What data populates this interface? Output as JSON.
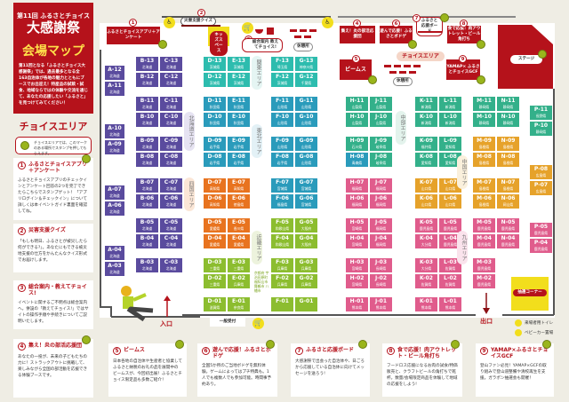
{
  "header": {
    "edition": "第11回 ふるさとチョイス",
    "title": "大感謝祭",
    "subtitle": "会場マップ",
    "description": "第11回となる「ふるさとチョイス大感謝祭」では、過去最多となる全163自治体が各地の魅力とともにブースでお出迎え！特産品の試飲・試食、地域ならではの体験や交流を通じて、あなたの応援したい「ふるさと」を見つけてみてください！"
  },
  "choice_area": {
    "heading": "チョイスエリア",
    "info": "チョイスエリアでは、このマークのある場所でスタンプを押してもらえます。"
  },
  "panels": [
    {
      "num": "1",
      "title": "ふるさとチョイスアプリ＋アンケート",
      "body": "ふるさとチョイスアプリのチェックインとアンケート回答の2つを完了できたらこちらでスタンプゲット！「アプリログイン＆チェックイン」について詳しくは本イベントガイド裏面を確認してね。"
    },
    {
      "num": "2",
      "title": "災害支援クイズ",
      "body": "「もしも明日、ふるさとが被災したら何ができる?」。あなたにもできる被災地支援の仕方をかんたんなクイズ形式でお届けします。"
    },
    {
      "num": "3",
      "title": "総合案内・教えてチョイス!",
      "body": "イベントに関するご不明点は総合案内へ。併設の「教えてチョイス!」ではサイトの操作手順や手続きについてご説明いたします。"
    },
    {
      "num": "4",
      "title": "集え！炎の部活応援団",
      "body": "あなたの一投が、未来の子どもたちの力に！ストラックアウトに挑戦して、楽しみながら全国の部活動を応援できる体験ブースです。"
    },
    {
      "num": "5",
      "title": "ビームス",
      "body": "日本各地の自治体や生産者と協業してふるさと納税のお礼の品を展開中のビームスが、今回初出展！ふるさとチョイス限定品も多数ご紹介！"
    },
    {
      "num": "6",
      "title": "遊んで応援！ふるさとボドゲ",
      "body": "全国5か所のご当地ボドゲを無料体験。ゲームによってはプチ特典も。1人でも複数人でも参加可能。時間事予約あり。"
    },
    {
      "num": "7",
      "title": "ふるさと応援ボード",
      "body": "大感謝祭で出会った自治体や、日ごろから応援している自治体に向けてメッセージを送ろう!"
    },
    {
      "num": "8",
      "title": "食で応援！肉アウトレット・ビール角打ち",
      "body": "フードロス応援になるお肉の試食/特価販売と、クラフトビールの角打ちで乾杯。数量/会場限定商品を体験して地域の応援をしよう!"
    },
    {
      "num": "9",
      "title": "YAMAP×ふるさとチョイスGCF",
      "body": "登山ファン必見！YAMAP×GCFの取り組みで登山道整備や清校再生を支援。ガラポン抽選会も開催！"
    }
  ],
  "map": {
    "features": {
      "app": "ふるさとチョイスアプリ＋アンケート",
      "quiz": "災害支援クイズ",
      "kids": "キッズスペース",
      "info": "総合案内 教えてチョイス!",
      "rest": "休憩所",
      "bukatsu": "集え！炎の部活応援団",
      "bodoge": "遊んで応援！ふるさとボドゲ",
      "board": "ふるさと応援ボード",
      "food": "食で応援！肉アウトレット・ビール角打ち",
      "choice_area": "チョイスエリア",
      "beams": "ビームス",
      "yamap": "YAMAP× ふるさとチョイスGCF",
      "stage": "ステージ",
      "lottery": "抽選コーナー",
      "reception": "一般受付",
      "entrance": "入口",
      "exit": "出口",
      "extra_list": "京都府 宇治田原町 福知山市 舞鶴市 八幡市"
    },
    "areas": {
      "hokkaido": "北海道エリア",
      "kanto": "関東エリア",
      "tohoku": "東北エリア",
      "shikoku": "四国エリア",
      "kinki": "近畿エリア",
      "chubu": "中部エリア",
      "chugoku": "中国エリア",
      "kyushu": "九州エリア"
    },
    "legend": {
      "toilet": "来場者用トイレ",
      "stroller": "ベビーカー置場"
    },
    "colors": {
      "hokkaido": "#5a4b9e",
      "kanto": "#2dbcae",
      "tohoku": "#2a9bbb",
      "shikoku": "#e8731f",
      "kinki": "#8cbd2f",
      "chubu": "#33b08a",
      "chugoku": "#e6a22a",
      "kyushu": "#e05c8c",
      "brand": "#b5121b"
    },
    "booths": [
      {
        "code": "A-12",
        "pref": "北海道",
        "g": "hokkaido"
      },
      {
        "code": "A-11",
        "pref": "北海道",
        "g": "hokkaido"
      },
      {
        "code": "A-10",
        "pref": "北海道",
        "g": "hokkaido"
      },
      {
        "code": "A-09",
        "pref": "北海道",
        "g": "hokkaido"
      },
      {
        "code": "A-07",
        "pref": "北海道",
        "g": "hokkaido"
      },
      {
        "code": "A-06",
        "pref": "北海道",
        "g": "hokkaido"
      },
      {
        "code": "A-04",
        "pref": "北海道",
        "g": "hokkaido"
      },
      {
        "code": "A-03",
        "pref": "北海道",
        "g": "hokkaido"
      },
      {
        "code": "B-13",
        "pref": "北海道",
        "g": "hokkaido"
      },
      {
        "code": "C-13",
        "pref": "北海道",
        "g": "hokkaido"
      },
      {
        "code": "B-12",
        "pref": "北海道",
        "g": "hokkaido"
      },
      {
        "code": "C-12",
        "pref": "北海道",
        "g": "hokkaido"
      },
      {
        "code": "B-11",
        "pref": "北海道",
        "g": "hokkaido"
      },
      {
        "code": "C-11",
        "pref": "北海道",
        "g": "hokkaido"
      },
      {
        "code": "B-10",
        "pref": "北海道",
        "g": "hokkaido"
      },
      {
        "code": "C-10",
        "pref": "北海道",
        "g": "hokkaido"
      },
      {
        "code": "B-09",
        "pref": "北海道",
        "g": "hokkaido"
      },
      {
        "code": "C-09",
        "pref": "北海道",
        "g": "hokkaido"
      },
      {
        "code": "B-08",
        "pref": "北海道",
        "g": "hokkaido"
      },
      {
        "code": "C-08",
        "pref": "北海道",
        "g": "hokkaido"
      },
      {
        "code": "B-07",
        "pref": "北海道",
        "g": "hokkaido"
      },
      {
        "code": "C-07",
        "pref": "北海道",
        "g": "hokkaido"
      },
      {
        "code": "B-06",
        "pref": "北海道",
        "g": "hokkaido"
      },
      {
        "code": "C-06",
        "pref": "北海道",
        "g": "hokkaido"
      },
      {
        "code": "B-05",
        "pref": "北海道",
        "g": "hokkaido"
      },
      {
        "code": "C-05",
        "pref": "北海道",
        "g": "hokkaido"
      },
      {
        "code": "B-04",
        "pref": "北海道",
        "g": "hokkaido"
      },
      {
        "code": "C-04",
        "pref": "北海道",
        "g": "hokkaido"
      },
      {
        "code": "B-03",
        "pref": "北海道",
        "g": "hokkaido"
      },
      {
        "code": "C-03",
        "pref": "北海道",
        "g": "hokkaido"
      },
      {
        "code": "D-13",
        "pref": "茨城県",
        "g": "kanto"
      },
      {
        "code": "E-13",
        "pref": "茨城県",
        "g": "kanto"
      },
      {
        "code": "D-12",
        "pref": "茨城県",
        "g": "kanto"
      },
      {
        "code": "E-12",
        "pref": "茨城県",
        "g": "kanto"
      },
      {
        "code": "D-11",
        "pref": "秋田県",
        "g": "tohoku"
      },
      {
        "code": "E-11",
        "pref": "秋田県",
        "g": "tohoku"
      },
      {
        "code": "D-10",
        "pref": "秋田県",
        "g": "tohoku"
      },
      {
        "code": "E-10",
        "pref": "秋田県",
        "g": "tohoku"
      },
      {
        "code": "D-09",
        "pref": "岩手県",
        "g": "tohoku"
      },
      {
        "code": "E-09",
        "pref": "岩手県",
        "g": "tohoku"
      },
      {
        "code": "D-08",
        "pref": "岩手県",
        "g": "tohoku"
      },
      {
        "code": "E-08",
        "pref": "岩手県",
        "g": "tohoku"
      },
      {
        "code": "D-07",
        "pref": "高知県",
        "g": "shikoku"
      },
      {
        "code": "E-07",
        "pref": "高知県",
        "g": "shikoku"
      },
      {
        "code": "D-06",
        "pref": "高知県",
        "g": "shikoku"
      },
      {
        "code": "E-06",
        "pref": "徳島県",
        "g": "shikoku"
      },
      {
        "code": "D-05",
        "pref": "愛媛県",
        "g": "shikoku"
      },
      {
        "code": "E-05",
        "pref": "香川県",
        "g": "shikoku"
      },
      {
        "code": "D-04",
        "pref": "愛媛県",
        "g": "shikoku"
      },
      {
        "code": "E-04",
        "pref": "愛媛県",
        "g": "shikoku"
      },
      {
        "code": "D-03",
        "pref": "三重県",
        "g": "kinki"
      },
      {
        "code": "E-03",
        "pref": "三重県",
        "g": "kinki"
      },
      {
        "code": "D-02",
        "pref": "三重県",
        "g": "kinki"
      },
      {
        "code": "E-02",
        "pref": "兵庫県",
        "g": "kinki"
      },
      {
        "code": "D-01",
        "pref": "滋賀県",
        "g": "kinki"
      },
      {
        "code": "E-01",
        "pref": "奈良県",
        "g": "kinki"
      },
      {
        "code": "F-13",
        "pref": "埼玉県",
        "g": "kanto"
      },
      {
        "code": "G-13",
        "pref": "神奈川県",
        "g": "kanto"
      },
      {
        "code": "F-12",
        "pref": "茨城県",
        "g": "kanto"
      },
      {
        "code": "G-12",
        "pref": "千葉県",
        "g": "kanto"
      },
      {
        "code": "F-11",
        "pref": "山形県",
        "g": "tohoku"
      },
      {
        "code": "G-11",
        "pref": "山形県",
        "g": "tohoku"
      },
      {
        "code": "F-10",
        "pref": "山形県",
        "g": "tohoku"
      },
      {
        "code": "G-10",
        "pref": "山形県",
        "g": "tohoku"
      },
      {
        "code": "F-09",
        "pref": "山形県",
        "g": "tohoku"
      },
      {
        "code": "G-09",
        "pref": "山形県",
        "g": "tohoku"
      },
      {
        "code": "F-08",
        "pref": "岩手県",
        "g": "tohoku"
      },
      {
        "code": "G-08",
        "pref": "山形県",
        "g": "tohoku"
      },
      {
        "code": "F-07",
        "pref": "宮城県",
        "g": "tohoku"
      },
      {
        "code": "G-07",
        "pref": "宮城県",
        "g": "tohoku"
      },
      {
        "code": "F-06",
        "pref": "福島県",
        "g": "tohoku"
      },
      {
        "code": "G-06",
        "pref": "宮城県",
        "g": "tohoku"
      },
      {
        "code": "F-05",
        "pref": "和歌山県",
        "g": "kinki"
      },
      {
        "code": "G-05",
        "pref": "大阪府",
        "g": "kinki"
      },
      {
        "code": "F-04",
        "pref": "和歌山県",
        "g": "kinki"
      },
      {
        "code": "G-04",
        "pref": "大阪府",
        "g": "kinki"
      },
      {
        "code": "F-03",
        "pref": "兵庫県",
        "g": "kinki"
      },
      {
        "code": "G-03",
        "pref": "兵庫県",
        "g": "kinki"
      },
      {
        "code": "F-02",
        "pref": "兵庫県",
        "g": "kinki"
      },
      {
        "code": "G-02",
        "pref": "兵庫県",
        "g": "kinki"
      },
      {
        "code": "F-01",
        "pref": "",
        "g": "kinki"
      },
      {
        "code": "G-01",
        "pref": "",
        "g": "kinki"
      },
      {
        "code": "H-11",
        "pref": "山梨県",
        "g": "chubu"
      },
      {
        "code": "J-11",
        "pref": "山梨県",
        "g": "chubu"
      },
      {
        "code": "H-10",
        "pref": "山梨県",
        "g": "chubu"
      },
      {
        "code": "J-10",
        "pref": "山梨県",
        "g": "chubu"
      },
      {
        "code": "H-09",
        "pref": "石川県",
        "g": "chubu"
      },
      {
        "code": "J-09",
        "pref": "岐阜県",
        "g": "chubu"
      },
      {
        "code": "H-08",
        "pref": "青森県",
        "g": "tohoku"
      },
      {
        "code": "J-08",
        "pref": "岐阜県",
        "g": "chubu"
      },
      {
        "code": "H-07",
        "pref": "福岡県",
        "g": "kyushu"
      },
      {
        "code": "J-07",
        "pref": "福岡県",
        "g": "kyushu"
      },
      {
        "code": "H-06",
        "pref": "福岡県",
        "g": "kyushu"
      },
      {
        "code": "J-06",
        "pref": "福岡県",
        "g": "kyushu"
      },
      {
        "code": "H-05",
        "pref": "宮崎県",
        "g": "kyushu"
      },
      {
        "code": "J-05",
        "pref": "福岡県",
        "g": "kyushu"
      },
      {
        "code": "H-04",
        "pref": "宮崎県",
        "g": "kyushu"
      },
      {
        "code": "J-04",
        "pref": "福岡県",
        "g": "kyushu"
      },
      {
        "code": "H-03",
        "pref": "宮崎県",
        "g": "kyushu"
      },
      {
        "code": "J-03",
        "pref": "長崎県",
        "g": "kyushu"
      },
      {
        "code": "H-02",
        "pref": "宮崎県",
        "g": "kyushu"
      },
      {
        "code": "J-02",
        "pref": "長崎県",
        "g": "kyushu"
      },
      {
        "code": "H-01",
        "pref": "熊本県",
        "g": "kyushu"
      },
      {
        "code": "J-01",
        "pref": "熊本県",
        "g": "kyushu"
      },
      {
        "code": "K-11",
        "pref": "新潟県",
        "g": "chubu"
      },
      {
        "code": "L-11",
        "pref": "新潟県",
        "g": "chubu"
      },
      {
        "code": "K-10",
        "pref": "新潟県",
        "g": "chubu"
      },
      {
        "code": "L-10",
        "pref": "新潟県",
        "g": "chubu"
      },
      {
        "code": "K-09",
        "pref": "福井県",
        "g": "chubu"
      },
      {
        "code": "L-09",
        "pref": "愛知県",
        "g": "chubu"
      },
      {
        "code": "K-08",
        "pref": "愛知県",
        "g": "chubu"
      },
      {
        "code": "L-08",
        "pref": "愛知県",
        "g": "chubu"
      },
      {
        "code": "K-07",
        "pref": "山口県",
        "g": "chugoku"
      },
      {
        "code": "L-07",
        "pref": "山口県",
        "g": "chugoku"
      },
      {
        "code": "K-06",
        "pref": "山口県",
        "g": "chugoku"
      },
      {
        "code": "L-06",
        "pref": "山口県",
        "g": "chugoku"
      },
      {
        "code": "K-05",
        "pref": "鹿児島県",
        "g": "kyushu"
      },
      {
        "code": "L-05",
        "pref": "鹿児島県",
        "g": "kyushu"
      },
      {
        "code": "K-04",
        "pref": "大分県",
        "g": "kyushu"
      },
      {
        "code": "L-04",
        "pref": "鹿児島県",
        "g": "kyushu"
      },
      {
        "code": "K-03",
        "pref": "大分県",
        "g": "kyushu"
      },
      {
        "code": "L-03",
        "pref": "佐賀県",
        "g": "kyushu"
      },
      {
        "code": "K-02",
        "pref": "佐賀県",
        "g": "kyushu"
      },
      {
        "code": "L-02",
        "pref": "佐賀県",
        "g": "kyushu"
      },
      {
        "code": "K-01",
        "pref": "熊本県",
        "g": "kyushu"
      },
      {
        "code": "L-01",
        "pref": "熊本県",
        "g": "kyushu"
      },
      {
        "code": "M-11",
        "pref": "静岡県",
        "g": "chubu"
      },
      {
        "code": "N-11",
        "pref": "静岡県",
        "g": "chubu"
      },
      {
        "code": "M-10",
        "pref": "静岡県",
        "g": "chubu"
      },
      {
        "code": "N-10",
        "pref": "静岡県",
        "g": "chubu"
      },
      {
        "code": "M-09",
        "pref": "島根県",
        "g": "chugoku"
      },
      {
        "code": "N-09",
        "pref": "島根県",
        "g": "chugoku"
      },
      {
        "code": "M-08",
        "pref": "島根県",
        "g": "chugoku"
      },
      {
        "code": "N-08",
        "pref": "島根県",
        "g": "chugoku"
      },
      {
        "code": "M-07",
        "pref": "島根県",
        "g": "chugoku"
      },
      {
        "code": "N-07",
        "pref": "島根県",
        "g": "chugoku"
      },
      {
        "code": "M-06",
        "pref": "島根県",
        "g": "chugoku"
      },
      {
        "code": "N-06",
        "pref": "岡山県",
        "g": "chugoku"
      },
      {
        "code": "M-05",
        "pref": "鹿児島県",
        "g": "kyushu"
      },
      {
        "code": "N-05",
        "pref": "鹿児島県",
        "g": "kyushu"
      },
      {
        "code": "M-04",
        "pref": "鹿児島県",
        "g": "kyushu"
      },
      {
        "code": "N-04",
        "pref": "鹿児島県",
        "g": "kyushu"
      },
      {
        "code": "M-03",
        "pref": "鹿児島県",
        "g": "kyushu"
      },
      {
        "code": "M-02",
        "pref": "鹿児島県",
        "g": "kyushu"
      },
      {
        "code": "P-11",
        "pref": "長野県",
        "g": "chubu"
      },
      {
        "code": "P-10",
        "pref": "静岡県",
        "g": "chubu"
      },
      {
        "code": "P-08",
        "pref": "広島県",
        "g": "chugoku"
      },
      {
        "code": "P-07",
        "pref": "広島県",
        "g": "chugoku"
      },
      {
        "code": "P-05",
        "pref": "鹿児島県",
        "g": "kyushu"
      },
      {
        "code": "P-04",
        "pref": "鹿児島県",
        "g": "kyushu"
      }
    ]
  }
}
